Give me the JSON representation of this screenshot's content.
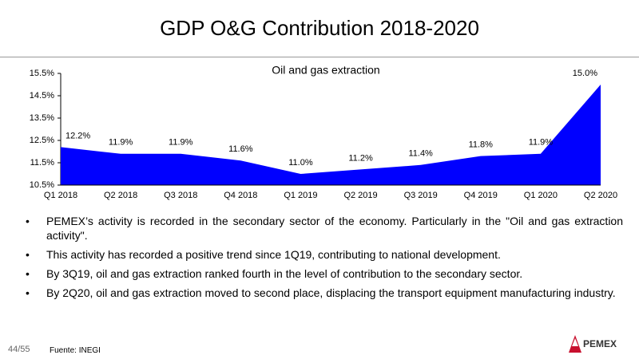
{
  "header": {
    "title": "GDP O&G Contribution 2018-2020"
  },
  "chart_data": {
    "type": "area",
    "title": "Oil and gas extraction",
    "categories": [
      "Q1 2018",
      "Q2 2018",
      "Q3 2018",
      "Q4 2018",
      "Q1 2019",
      "Q2 2019",
      "Q3 2019",
      "Q4 2019",
      "Q1 2020",
      "Q2 2020"
    ],
    "values": [
      12.2,
      11.9,
      11.9,
      11.6,
      11.0,
      11.2,
      11.4,
      11.8,
      11.9,
      15.0
    ],
    "value_labels": [
      "12.2%",
      "11.9%",
      "11.9%",
      "11.6%",
      "11.0%",
      "11.2%",
      "11.4%",
      "11.8%",
      "11.9%",
      "15.0%"
    ],
    "color": "#0000ff",
    "ylim": [
      10.5,
      15.5
    ],
    "yticks": [
      {
        "value": 10.5,
        "label": "10.5%"
      },
      {
        "value": 11.5,
        "label": "11.5%"
      },
      {
        "value": 12.5,
        "label": "12.5%"
      },
      {
        "value": 13.5,
        "label": "13.5%"
      },
      {
        "value": 14.5,
        "label": "14.5%"
      },
      {
        "value": 15.5,
        "label": "15.5%"
      }
    ]
  },
  "bullets": [
    "PEMEX’s activity is recorded in the secondary sector of the economy. Particularly in the \"Oil and gas extraction activity\".",
    "This activity has recorded a positive trend since 1Q19, contributing to national development.",
    "By 3Q19, oil and gas extraction ranked fourth in the level of contribution to the secondary sector.",
    "By 2Q20, oil and gas extraction moved to second place, displacing the transport equipment manufacturing industry."
  ],
  "footer": {
    "page": "44/55",
    "source": "Fuente: INEGI",
    "logo": "PEMEX"
  }
}
